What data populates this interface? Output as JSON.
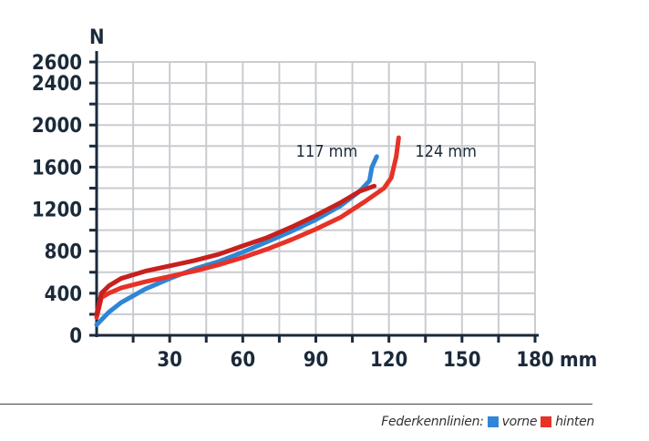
{
  "chart_data": {
    "type": "line",
    "y_unit": "N",
    "x_unit": "mm",
    "xlim": [
      0,
      180
    ],
    "ylim": [
      0,
      2600
    ],
    "x_ticks": [
      30,
      60,
      90,
      120,
      150,
      180
    ],
    "y_ticks": [
      0,
      400,
      800,
      1200,
      1600,
      2000,
      2400,
      2600
    ],
    "grid": true,
    "series": [
      {
        "name": "vorne",
        "color": "#2f86d6",
        "points": [
          [
            0,
            100
          ],
          [
            5,
            220
          ],
          [
            10,
            310
          ],
          [
            20,
            440
          ],
          [
            30,
            540
          ],
          [
            40,
            630
          ],
          [
            50,
            700
          ],
          [
            60,
            790
          ],
          [
            70,
            890
          ],
          [
            80,
            990
          ],
          [
            90,
            1100
          ],
          [
            100,
            1230
          ],
          [
            108,
            1370
          ],
          [
            112,
            1470
          ],
          [
            113,
            1600
          ],
          [
            115,
            1700
          ]
        ]
      },
      {
        "name": "hinten",
        "color": "#e63227",
        "points": [
          [
            0,
            170
          ],
          [
            2,
            360
          ],
          [
            5,
            400
          ],
          [
            10,
            450
          ],
          [
            20,
            510
          ],
          [
            30,
            560
          ],
          [
            40,
            610
          ],
          [
            50,
            670
          ],
          [
            60,
            740
          ],
          [
            70,
            820
          ],
          [
            80,
            910
          ],
          [
            90,
            1010
          ],
          [
            100,
            1120
          ],
          [
            110,
            1270
          ],
          [
            118,
            1400
          ],
          [
            121,
            1500
          ],
          [
            123,
            1700
          ],
          [
            124,
            1880
          ]
        ]
      },
      {
        "name": "",
        "color": "#c8201d",
        "points": [
          [
            0,
            200
          ],
          [
            2,
            400
          ],
          [
            5,
            470
          ],
          [
            10,
            540
          ],
          [
            20,
            610
          ],
          [
            30,
            660
          ],
          [
            40,
            710
          ],
          [
            50,
            770
          ],
          [
            60,
            850
          ],
          [
            70,
            930
          ],
          [
            80,
            1030
          ],
          [
            90,
            1140
          ],
          [
            100,
            1260
          ],
          [
            108,
            1370
          ],
          [
            114,
            1420
          ]
        ]
      }
    ],
    "annotations": [
      {
        "text": "117  mm",
        "x": 117,
        "y": 1750
      },
      {
        "text": "124  mm",
        "x": 124,
        "y": 1750
      }
    ]
  },
  "labels": {
    "y_unit": "N",
    "x_unit": "mm"
  },
  "legend": {
    "prefix": "Federkennlinien:",
    "items": [
      {
        "label": "vorne",
        "color": "#2f86d6"
      },
      {
        "label": "hinten",
        "color": "#e63227"
      }
    ]
  }
}
